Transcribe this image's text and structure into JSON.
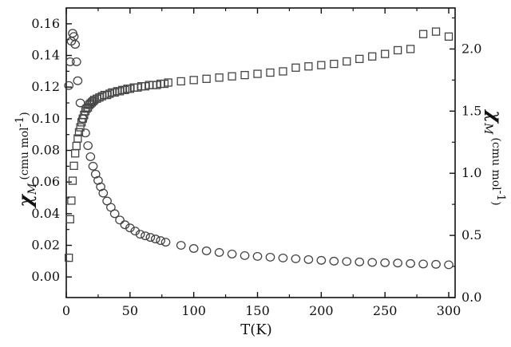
{
  "chart_data": {
    "type": "scatter",
    "title": "",
    "xlabel": "T(K)",
    "xlim": [
      0,
      305
    ],
    "x_ticks": [
      0,
      50,
      100,
      150,
      200,
      250,
      300
    ],
    "y_left": {
      "label_symbol": "χ",
      "label_sub": "M",
      "label_unit": "(cmu mol",
      "label_exp": "-1",
      "label_close": ")",
      "lim": [
        -0.013,
        0.17
      ],
      "ticks": [
        "0.00",
        "0.02",
        "0.04",
        "0.06",
        "0.08",
        "0.10",
        "0.12",
        "0.14",
        "0.16"
      ]
    },
    "y_right": {
      "label_symbol": "χ",
      "label_sub": "M",
      "label_unit": "(cmu mol",
      "label_exp": "-1",
      "label_close": ")",
      "lim": [
        0.0,
        2.33
      ],
      "ticks": [
        "0.0",
        "0.5",
        "1.0",
        "1.5",
        "2.0"
      ]
    },
    "grid": false,
    "series": [
      {
        "marker": "circle",
        "axis": "left",
        "x": [
          2,
          3,
          4,
          5,
          6,
          7,
          8,
          9,
          11,
          13,
          15,
          17,
          19,
          21,
          23,
          25,
          27,
          29,
          32,
          35,
          38,
          42,
          46,
          50,
          54,
          58,
          62,
          66,
          70,
          74,
          78,
          90,
          100,
          110,
          120,
          130,
          140,
          150,
          160,
          170,
          180,
          190,
          200,
          210,
          220,
          230,
          240,
          250,
          260,
          270,
          280,
          290,
          300
        ],
        "y": [
          0.121,
          0.136,
          0.149,
          0.154,
          0.152,
          0.147,
          0.136,
          0.124,
          0.11,
          0.1,
          0.091,
          0.083,
          0.076,
          0.07,
          0.065,
          0.061,
          0.057,
          0.053,
          0.048,
          0.044,
          0.04,
          0.036,
          0.033,
          0.031,
          0.029,
          0.027,
          0.026,
          0.025,
          0.024,
          0.023,
          0.022,
          0.02,
          0.018,
          0.0165,
          0.0155,
          0.0145,
          0.0135,
          0.013,
          0.0125,
          0.012,
          0.0115,
          0.011,
          0.0105,
          0.01,
          0.0098,
          0.0095,
          0.0092,
          0.009,
          0.0088,
          0.0085,
          0.0082,
          0.008,
          0.0077
        ]
      },
      {
        "marker": "square",
        "axis": "right",
        "x": [
          2,
          3,
          4,
          5,
          6,
          7,
          8,
          9,
          10,
          11,
          12,
          13,
          14,
          15,
          16,
          17,
          18,
          19,
          20,
          21,
          22,
          24,
          26,
          28,
          30,
          32,
          34,
          36,
          38,
          40,
          42,
          44,
          46,
          48,
          50,
          53,
          56,
          59,
          62,
          65,
          68,
          71,
          74,
          77,
          80,
          90,
          100,
          110,
          120,
          130,
          140,
          150,
          160,
          170,
          180,
          190,
          200,
          210,
          220,
          230,
          240,
          250,
          260,
          270,
          280,
          290,
          300
        ],
        "y": [
          0.32,
          0.63,
          0.78,
          0.94,
          1.06,
          1.16,
          1.22,
          1.28,
          1.33,
          1.37,
          1.41,
          1.44,
          1.47,
          1.5,
          1.52,
          1.53,
          1.55,
          1.56,
          1.57,
          1.58,
          1.59,
          1.6,
          1.61,
          1.62,
          1.63,
          1.63,
          1.64,
          1.65,
          1.65,
          1.66,
          1.66,
          1.67,
          1.67,
          1.68,
          1.68,
          1.69,
          1.69,
          1.7,
          1.7,
          1.71,
          1.71,
          1.71,
          1.72,
          1.72,
          1.73,
          1.74,
          1.75,
          1.76,
          1.77,
          1.78,
          1.79,
          1.8,
          1.81,
          1.82,
          1.85,
          1.86,
          1.87,
          1.88,
          1.9,
          1.92,
          1.94,
          1.96,
          1.99,
          2.0,
          2.12,
          2.14,
          2.1
        ]
      }
    ]
  }
}
